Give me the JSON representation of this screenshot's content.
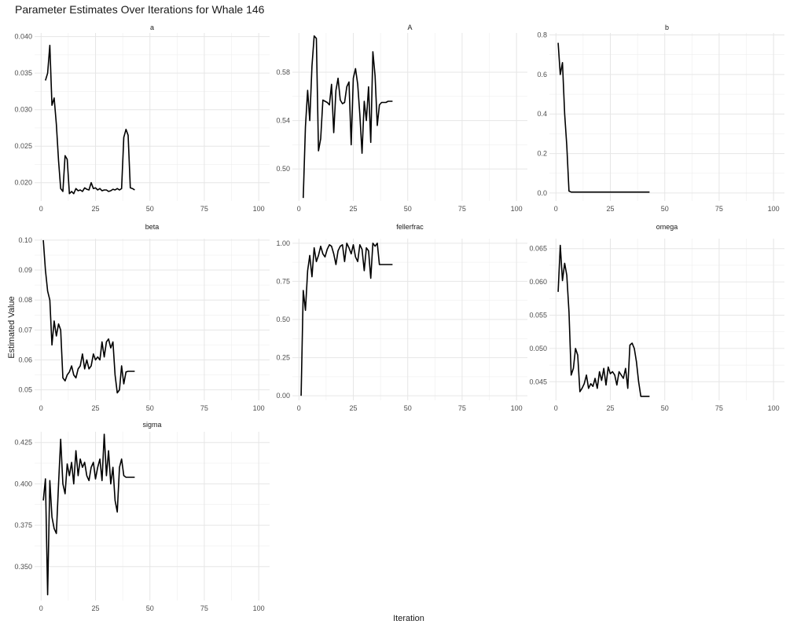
{
  "title": "Parameter Estimates Over Iterations for Whale 146",
  "xlabel": "Iteration",
  "ylabel": "Estimated Value",
  "chart_data": {
    "type": "line",
    "title": "Parameter Estimates Over Iterations for Whale 146",
    "xlabel": "Iteration",
    "ylabel": "Estimated Value",
    "grid": true,
    "shared_x": {
      "xlim": [
        -3,
        105
      ],
      "xticks": [
        0,
        25,
        50,
        75,
        100
      ]
    },
    "line_color": "#000000",
    "panels": [
      {
        "label": "a",
        "ylim": [
          0.0175,
          0.0405
        ],
        "yticks": [
          0.02,
          0.025,
          0.03,
          0.035,
          0.04
        ],
        "yticklabels": [
          "0.020",
          "0.025",
          "0.030",
          "0.035",
          "0.040"
        ],
        "x": [
          2,
          3,
          4,
          5,
          6,
          7,
          8,
          9,
          10,
          11,
          12,
          13,
          14,
          15,
          16,
          17,
          18,
          19,
          20,
          21,
          22,
          23,
          24,
          25,
          26,
          27,
          28,
          29,
          30,
          31,
          32,
          33,
          34,
          35,
          36,
          37,
          38,
          39,
          40,
          41,
          42,
          43
        ],
        "y": [
          0.034,
          0.035,
          0.0388,
          0.0306,
          0.0316,
          0.028,
          0.023,
          0.0192,
          0.0188,
          0.0237,
          0.0232,
          0.0185,
          0.0188,
          0.0185,
          0.0192,
          0.0189,
          0.019,
          0.0188,
          0.0193,
          0.0191,
          0.019,
          0.02,
          0.0192,
          0.0193,
          0.019,
          0.0192,
          0.0189,
          0.019,
          0.019,
          0.0188,
          0.0189,
          0.0191,
          0.019,
          0.0192,
          0.019,
          0.0192,
          0.0262,
          0.0273,
          0.0265,
          0.0193,
          0.0192,
          0.019
        ]
      },
      {
        "label": "A",
        "ylim": [
          0.4735,
          0.6125
        ],
        "yticks": [
          0.5,
          0.54,
          0.58
        ],
        "yticklabels": [
          "0.50",
          "0.54",
          "0.58"
        ],
        "x": [
          2,
          3,
          4,
          5,
          6,
          7,
          8,
          9,
          10,
          11,
          12,
          13,
          14,
          15,
          16,
          17,
          18,
          19,
          20,
          21,
          22,
          23,
          24,
          25,
          26,
          27,
          28,
          29,
          30,
          31,
          32,
          33,
          34,
          35,
          36,
          37,
          38,
          39,
          40,
          41,
          42,
          43
        ],
        "y": [
          0.476,
          0.535,
          0.565,
          0.54,
          0.585,
          0.61,
          0.608,
          0.515,
          0.525,
          0.557,
          0.556,
          0.555,
          0.553,
          0.57,
          0.53,
          0.565,
          0.575,
          0.557,
          0.554,
          0.555,
          0.568,
          0.572,
          0.52,
          0.575,
          0.583,
          0.57,
          0.545,
          0.513,
          0.556,
          0.54,
          0.568,
          0.522,
          0.597,
          0.577,
          0.536,
          0.553,
          0.555,
          0.555,
          0.555,
          0.556,
          0.556,
          0.556
        ]
      },
      {
        "label": "b",
        "ylim": [
          -0.04,
          0.81
        ],
        "yticks": [
          0.0,
          0.2,
          0.4,
          0.6,
          0.8
        ],
        "yticklabels": [
          "0.0",
          "0.2",
          "0.4",
          "0.6",
          "0.8"
        ],
        "x": [
          1,
          2,
          3,
          4,
          5,
          6,
          7,
          8,
          9,
          10,
          15,
          20,
          25,
          30,
          35,
          40,
          43
        ],
        "y": [
          0.76,
          0.6,
          0.66,
          0.4,
          0.24,
          0.01,
          0.005,
          0.005,
          0.005,
          0.005,
          0.005,
          0.005,
          0.005,
          0.005,
          0.005,
          0.005,
          0.005
        ]
      },
      {
        "label": "beta",
        "ylim": [
          0.0465,
          0.1005
        ],
        "yticks": [
          0.05,
          0.06,
          0.07,
          0.08,
          0.09,
          0.1
        ],
        "yticklabels": [
          "0.05",
          "0.06",
          "0.07",
          "0.08",
          "0.09",
          "0.10"
        ],
        "x": [
          1,
          2,
          3,
          4,
          5,
          6,
          7,
          8,
          9,
          10,
          11,
          12,
          13,
          14,
          15,
          16,
          17,
          18,
          19,
          20,
          21,
          22,
          23,
          24,
          25,
          26,
          27,
          28,
          29,
          30,
          31,
          32,
          33,
          34,
          35,
          36,
          37,
          38,
          39,
          40,
          41,
          42,
          43
        ],
        "y": [
          0.1,
          0.09,
          0.083,
          0.08,
          0.065,
          0.073,
          0.068,
          0.072,
          0.07,
          0.054,
          0.053,
          0.055,
          0.056,
          0.058,
          0.055,
          0.054,
          0.057,
          0.058,
          0.062,
          0.057,
          0.06,
          0.057,
          0.058,
          0.062,
          0.06,
          0.061,
          0.06,
          0.066,
          0.061,
          0.066,
          0.067,
          0.064,
          0.066,
          0.055,
          0.049,
          0.05,
          0.058,
          0.052,
          0.056,
          0.0562,
          0.0562,
          0.0562,
          0.0562
        ]
      },
      {
        "label": "fellerfrac",
        "ylim": [
          -0.03,
          1.03
        ],
        "yticks": [
          0.0,
          0.25,
          0.5,
          0.75,
          1.0
        ],
        "yticklabels": [
          "0.00",
          "0.25",
          "0.50",
          "0.75",
          "1.00"
        ],
        "x": [
          1,
          2,
          3,
          4,
          5,
          6,
          7,
          8,
          9,
          10,
          11,
          12,
          13,
          14,
          15,
          16,
          17,
          18,
          19,
          20,
          21,
          22,
          23,
          24,
          25,
          26,
          27,
          28,
          29,
          30,
          31,
          32,
          33,
          34,
          35,
          36,
          37,
          38,
          39,
          40,
          41,
          42,
          43
        ],
        "y": [
          0.0,
          0.69,
          0.56,
          0.82,
          0.92,
          0.78,
          0.97,
          0.88,
          0.92,
          0.98,
          0.93,
          0.91,
          0.96,
          0.99,
          0.98,
          0.93,
          0.86,
          0.95,
          0.98,
          0.99,
          0.88,
          1.0,
          0.97,
          0.93,
          0.99,
          0.91,
          0.88,
          0.99,
          0.96,
          0.82,
          0.97,
          0.95,
          0.77,
          1.0,
          0.98,
          1.0,
          0.86,
          0.86,
          0.86,
          0.86,
          0.86,
          0.86,
          0.86
        ]
      },
      {
        "label": "omega",
        "ylim": [
          0.0422,
          0.0665
        ],
        "yticks": [
          0.045,
          0.05,
          0.055,
          0.06,
          0.065
        ],
        "yticklabels": [
          "0.045",
          "0.050",
          "0.055",
          "0.060",
          "0.065"
        ],
        "x": [
          1,
          2,
          3,
          4,
          5,
          6,
          7,
          8,
          9,
          10,
          11,
          12,
          13,
          14,
          15,
          16,
          17,
          18,
          19,
          20,
          21,
          22,
          23,
          24,
          25,
          26,
          27,
          28,
          29,
          30,
          31,
          32,
          33,
          34,
          35,
          36,
          37,
          38,
          39,
          40,
          41,
          42,
          43
        ],
        "y": [
          0.0585,
          0.0655,
          0.0602,
          0.0628,
          0.061,
          0.0555,
          0.046,
          0.047,
          0.05,
          0.049,
          0.0435,
          0.044,
          0.0447,
          0.046,
          0.044,
          0.0447,
          0.0443,
          0.0455,
          0.044,
          0.0465,
          0.0452,
          0.047,
          0.0445,
          0.0472,
          0.0462,
          0.0465,
          0.046,
          0.0445,
          0.0465,
          0.046,
          0.0455,
          0.047,
          0.044,
          0.0505,
          0.0508,
          0.05,
          0.048,
          0.045,
          0.0428,
          0.0428,
          0.0428,
          0.0428,
          0.0428
        ]
      },
      {
        "label": "sigma",
        "ylim": [
          0.3295,
          0.4315
        ],
        "yticks": [
          0.35,
          0.375,
          0.4,
          0.425
        ],
        "yticklabels": [
          "0.350",
          "0.375",
          "0.400",
          "0.425"
        ],
        "x": [
          1,
          2,
          3,
          4,
          5,
          6,
          7,
          8,
          9,
          10,
          11,
          12,
          13,
          14,
          15,
          16,
          17,
          18,
          19,
          20,
          21,
          22,
          23,
          24,
          25,
          26,
          27,
          28,
          29,
          30,
          31,
          32,
          33,
          34,
          35,
          36,
          37,
          38,
          39,
          40,
          41,
          42,
          43
        ],
        "y": [
          0.39,
          0.403,
          0.333,
          0.402,
          0.38,
          0.373,
          0.37,
          0.4,
          0.427,
          0.4,
          0.394,
          0.412,
          0.405,
          0.413,
          0.4,
          0.42,
          0.405,
          0.415,
          0.41,
          0.413,
          0.405,
          0.402,
          0.41,
          0.413,
          0.403,
          0.41,
          0.415,
          0.402,
          0.43,
          0.405,
          0.42,
          0.4,
          0.41,
          0.39,
          0.383,
          0.41,
          0.415,
          0.405,
          0.404,
          0.404,
          0.404,
          0.404,
          0.404
        ]
      }
    ]
  }
}
